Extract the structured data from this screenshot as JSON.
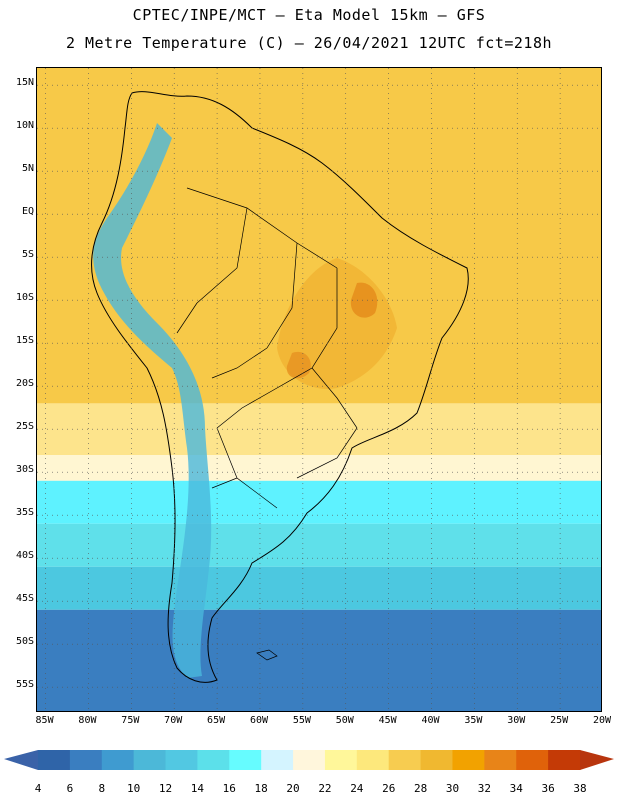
{
  "header": {
    "line1": "CPTEC/INPE/MCT –  Eta Model 15km – GFS",
    "line2": "2 Metre Temperature (C) – 26/04/2021 12UTC fct=218h"
  },
  "map": {
    "region": "South America",
    "lon_range": [
      -86,
      -20
    ],
    "lat_range": [
      -58,
      17
    ],
    "lat_ticks": [
      {
        "label": "15N",
        "lat": 15
      },
      {
        "label": "10N",
        "lat": 10
      },
      {
        "label": "5N",
        "lat": 5
      },
      {
        "label": "EQ",
        "lat": 0
      },
      {
        "label": "5S",
        "lat": -5
      },
      {
        "label": "10S",
        "lat": -10
      },
      {
        "label": "15S",
        "lat": -15
      },
      {
        "label": "20S",
        "lat": -20
      },
      {
        "label": "25S",
        "lat": -25
      },
      {
        "label": "30S",
        "lat": -30
      },
      {
        "label": "35S",
        "lat": -35
      },
      {
        "label": "40S",
        "lat": -40
      },
      {
        "label": "45S",
        "lat": -45
      },
      {
        "label": "50S",
        "lat": -50
      },
      {
        "label": "55S",
        "lat": -55
      }
    ],
    "lon_ticks": [
      {
        "label": "85W",
        "lon": -85
      },
      {
        "label": "80W",
        "lon": -80
      },
      {
        "label": "75W",
        "lon": -75
      },
      {
        "label": "70W",
        "lon": -70
      },
      {
        "label": "65W",
        "lon": -65
      },
      {
        "label": "60W",
        "lon": -60
      },
      {
        "label": "55W",
        "lon": -55
      },
      {
        "label": "50W",
        "lon": -50
      },
      {
        "label": "45W",
        "lon": -45
      },
      {
        "label": "40W",
        "lon": -40
      },
      {
        "label": "35W",
        "lon": -35
      },
      {
        "label": "30W",
        "lon": -30
      },
      {
        "label": "25W",
        "lon": -25
      },
      {
        "label": "20W",
        "lon": -20
      }
    ],
    "temperature_field": [
      {
        "lat_from": 17,
        "lat_to": -22,
        "value": "24-26",
        "color": "#f7c948"
      },
      {
        "lat_from": -22,
        "lat_to": -28,
        "value": "22-24",
        "color": "#fde48c"
      },
      {
        "lat_from": -28,
        "lat_to": -31,
        "value": "20-22",
        "color": "#fff6d2"
      },
      {
        "lat_from": -31,
        "lat_to": -36,
        "value": "16-18",
        "color": "#5ef2ff"
      },
      {
        "lat_from": -36,
        "lat_to": -41,
        "value": "14-16",
        "color": "#5fe0ea"
      },
      {
        "lat_from": -41,
        "lat_to": -46,
        "value": "12-14",
        "color": "#4cc8e0"
      },
      {
        "lat_from": -46,
        "lat_to": -58,
        "value": "6-8",
        "color": "#3a7ec0"
      }
    ]
  },
  "colorbar": {
    "labels": [
      "4",
      "6",
      "8",
      "10",
      "12",
      "14",
      "16",
      "18",
      "20",
      "22",
      "24",
      "26",
      "28",
      "30",
      "32",
      "34",
      "36",
      "38"
    ],
    "under_color": "#3a62a8",
    "over_color": "#b8350e",
    "colors": [
      "#2f64a8",
      "#3a7ec0",
      "#3f9bd0",
      "#4cb8d8",
      "#52c8e2",
      "#5ce0ea",
      "#66fcff",
      "#d4f4ff",
      "#fff6dc",
      "#fff79a",
      "#fde87c",
      "#f7cc50",
      "#f0b830",
      "#f2a200",
      "#e88418",
      "#e0620a",
      "#c43a06"
    ]
  }
}
